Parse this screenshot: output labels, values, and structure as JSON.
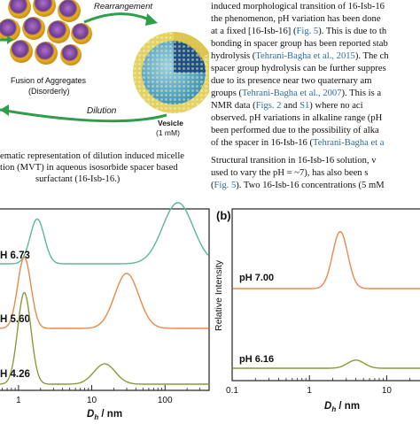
{
  "scheme": {
    "rearrangement": "Rearrangement",
    "fusion_line1": "Fusion of Aggregates",
    "fusion_line2": "(Disorderly)",
    "dilution": "Dilution",
    "vesicle_line1": "Vesicle",
    "vesicle_line2": "(1 mM)"
  },
  "caption": {
    "line1": "ematic representation of dilution induced micelle",
    "line2": "tion (MVT) in aqueous isosorbide spacer based",
    "line3": "surfactant (16-Isb-16.)"
  },
  "body_text": {
    "lines": [
      {
        "parts": [
          {
            "t": "induced morphological transition of 16-Isb-16"
          }
        ]
      },
      {
        "parts": [
          {
            "t": "the phenomenon, pH variation has been done"
          }
        ]
      },
      {
        "parts": [
          {
            "t": "at a fixed [16-Isb-16] ("
          },
          {
            "t": "Fig. 5",
            "c": 1
          },
          {
            "t": "). This is due to th"
          }
        ]
      },
      {
        "parts": [
          {
            "t": "bonding in spacer group has been reported stab"
          }
        ]
      },
      {
        "parts": [
          {
            "t": "hydrolysis ("
          },
          {
            "t": "Tehrani-Bagha et al., 2015",
            "c": 1
          },
          {
            "t": "). The ch"
          }
        ]
      },
      {
        "parts": [
          {
            "t": "spacer group hydrolysis can be further suppres"
          }
        ]
      },
      {
        "parts": [
          {
            "t": "due to its presence near two quaternary am"
          }
        ]
      },
      {
        "parts": [
          {
            "t": "groups ("
          },
          {
            "t": "Tehrani-Bagha et al., 2007",
            "c": 1
          },
          {
            "t": "). This is a"
          }
        ]
      },
      {
        "parts": [
          {
            "t": "NMR data ("
          },
          {
            "t": "Figs. 2",
            "c": 1
          },
          {
            "t": " and "
          },
          {
            "t": "S1",
            "c": 1
          },
          {
            "t": ") where no aci"
          }
        ]
      },
      {
        "parts": [
          {
            "t": "observed. pH variations in alkaline range (pH"
          }
        ]
      },
      {
        "parts": [
          {
            "t": "been performed due to the possibility of alka"
          }
        ]
      },
      {
        "parts": [
          {
            "t": "of the spacer in 16-Isb-16 ("
          },
          {
            "t": "Tehrani-Bagha et a",
            "c": 1
          }
        ]
      },
      {
        "parts": [
          {
            "t": "   Structural transition in 16-Isb-16 solution, v"
          }
        ]
      },
      {
        "parts": [
          {
            "t": "used to vary the pH = ~7), has also been s"
          }
        ]
      },
      {
        "parts": [
          {
            "t": "("
          },
          {
            "t": "Fig. 5",
            "c": 1
          },
          {
            "t": "). Two 16-Isb-16 concentrations (5 mM"
          }
        ]
      }
    ]
  },
  "panel_a": {
    "xlabel_main": "D",
    "xlabel_sub": "h",
    "xlabel_unit": " / nm",
    "ticks": [
      "1",
      "10",
      "100"
    ],
    "traces": [
      {
        "label": "H 6.73",
        "color": "#5bb79a",
        "peaks": [
          {
            "x": 1.8,
            "h": 0.22
          },
          {
            "x": 150,
            "h": 0.3
          }
        ]
      },
      {
        "label": "H 5.60",
        "color": "#e8894a",
        "peaks": [
          {
            "x": 1.2,
            "h": 0.35
          },
          {
            "x": 30,
            "h": 0.27
          }
        ]
      },
      {
        "label": "H 4.26",
        "color": "#8a9a38",
        "peaks": [
          {
            "x": 1.2,
            "h": 0.45
          },
          {
            "x": 15,
            "h": 0.1
          }
        ]
      }
    ]
  },
  "panel_b": {
    "label": "(b)",
    "ylabel": "Relative Intensity",
    "xlabel_main": "D",
    "xlabel_sub": "h",
    "xlabel_unit": " / nm",
    "ticks": [
      "0.1",
      "1",
      "10"
    ],
    "traces": [
      {
        "label": "pH 7.00",
        "color": "#e8894a",
        "peaks": [
          {
            "x": 2.5,
            "h": 0.28
          }
        ]
      },
      {
        "label": "pH 6.16",
        "color": "#8a9a38",
        "peaks": [
          {
            "x": 4.0,
            "h": 0.04
          }
        ]
      }
    ]
  }
}
